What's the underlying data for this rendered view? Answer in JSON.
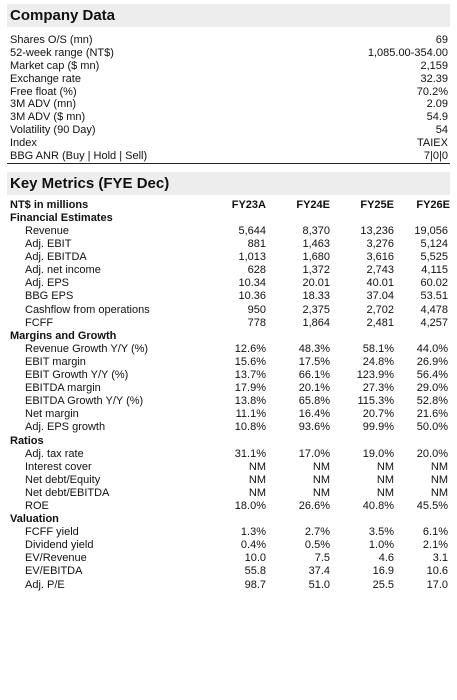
{
  "company_data": {
    "title": "Company Data",
    "rows": [
      {
        "label": "Shares O/S (mn)",
        "value": "69"
      },
      {
        "label": "52-week range (NT$)",
        "value": "1,085.00-354.00"
      },
      {
        "label": "Market cap ($ mn)",
        "value": "2,159"
      },
      {
        "label": "Exchange rate",
        "value": "32.39"
      },
      {
        "label": "Free float (%)",
        "value": "70.2%"
      },
      {
        "label": "3M ADV (mn)",
        "value": "2.09"
      },
      {
        "label": "3M ADV ($ mn)",
        "value": "54.9"
      },
      {
        "label": "Volatility (90 Day)",
        "value": "54"
      },
      {
        "label": "Index",
        "value": "TAIEX"
      },
      {
        "label": "BBG ANR (Buy | Hold | Sell)",
        "value": "7|0|0"
      }
    ]
  },
  "key_metrics": {
    "title": "Key Metrics (FYE Dec)",
    "header": {
      "label": "NT$ in millions",
      "cols": [
        "FY23A",
        "FY24E",
        "FY25E",
        "FY26E"
      ]
    },
    "groups": [
      {
        "title": "Financial Estimates",
        "rows": [
          {
            "label": "Revenue",
            "values": [
              "5,644",
              "8,370",
              "13,236",
              "19,056"
            ]
          },
          {
            "label": "Adj. EBIT",
            "values": [
              "881",
              "1,463",
              "3,276",
              "5,124"
            ]
          },
          {
            "label": "Adj. EBITDA",
            "values": [
              "1,013",
              "1,680",
              "3,616",
              "5,525"
            ]
          },
          {
            "label": "Adj. net income",
            "values": [
              "628",
              "1,372",
              "2,743",
              "4,115"
            ]
          },
          {
            "label": "Adj. EPS",
            "values": [
              "10.34",
              "20.01",
              "40.01",
              "60.02"
            ]
          },
          {
            "label": "BBG EPS",
            "values": [
              "10.36",
              "18.33",
              "37.04",
              "53.51"
            ]
          },
          {
            "label": "Cashflow from operations",
            "values": [
              "950",
              "2,375",
              "2,702",
              "4,478"
            ]
          },
          {
            "label": "FCFF",
            "values": [
              "778",
              "1,864",
              "2,481",
              "4,257"
            ]
          }
        ]
      },
      {
        "title": "Margins and Growth",
        "rows": [
          {
            "label": "Revenue Growth Y/Y (%)",
            "values": [
              "12.6%",
              "48.3%",
              "58.1%",
              "44.0%"
            ]
          },
          {
            "label": "EBIT margin",
            "values": [
              "15.6%",
              "17.5%",
              "24.8%",
              "26.9%"
            ]
          },
          {
            "label": "EBIT Growth Y/Y (%)",
            "values": [
              "13.7%",
              "66.1%",
              "123.9%",
              "56.4%"
            ]
          },
          {
            "label": "EBITDA margin",
            "values": [
              "17.9%",
              "20.1%",
              "27.3%",
              "29.0%"
            ]
          },
          {
            "label": "EBITDA Growth Y/Y (%)",
            "values": [
              "13.8%",
              "65.8%",
              "115.3%",
              "52.8%"
            ]
          },
          {
            "label": "Net margin",
            "values": [
              "11.1%",
              "16.4%",
              "20.7%",
              "21.6%"
            ]
          },
          {
            "label": "Adj. EPS growth",
            "values": [
              "10.8%",
              "93.6%",
              "99.9%",
              "50.0%"
            ]
          }
        ]
      },
      {
        "title": "Ratios",
        "rows": [
          {
            "label": "Adj. tax rate",
            "values": [
              "31.1%",
              "17.0%",
              "19.0%",
              "20.0%"
            ]
          },
          {
            "label": "Interest cover",
            "values": [
              "NM",
              "NM",
              "NM",
              "NM"
            ]
          },
          {
            "label": "Net debt/Equity",
            "values": [
              "NM",
              "NM",
              "NM",
              "NM"
            ]
          },
          {
            "label": "Net debt/EBITDA",
            "values": [
              "NM",
              "NM",
              "NM",
              "NM"
            ]
          },
          {
            "label": "ROE",
            "values": [
              "18.0%",
              "26.6%",
              "40.8%",
              "45.5%"
            ]
          }
        ]
      },
      {
        "title": "Valuation",
        "rows": [
          {
            "label": "FCFF yield",
            "values": [
              "1.3%",
              "2.7%",
              "3.5%",
              "6.1%"
            ]
          },
          {
            "label": "Dividend yield",
            "values": [
              "0.4%",
              "0.5%",
              "1.0%",
              "2.1%"
            ]
          },
          {
            "label": "EV/Revenue",
            "values": [
              "10.0",
              "7.5",
              "4.6",
              "3.1"
            ]
          },
          {
            "label": "EV/EBITDA",
            "values": [
              "55.8",
              "37.4",
              "16.9",
              "10.6"
            ]
          },
          {
            "label": "Adj. P/E",
            "values": [
              "98.7",
              "51.0",
              "25.5",
              "17.0"
            ]
          }
        ]
      }
    ]
  }
}
